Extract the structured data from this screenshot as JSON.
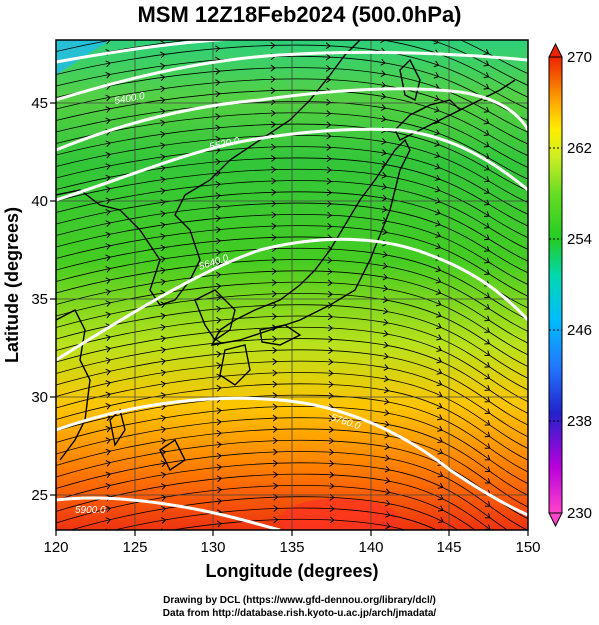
{
  "title": "MSM 12Z18Feb2024 (500.0hPa)",
  "axes": {
    "xlabel": "Longitude (degrees)",
    "ylabel": "Latitude  (degrees)",
    "xticks": [
      "120",
      "125",
      "130",
      "135",
      "140",
      "145",
      "150"
    ],
    "yticks": [
      "25",
      "30",
      "35",
      "40",
      "45"
    ]
  },
  "colorbar": {
    "tick_labels": [
      "230",
      "238",
      "246",
      "254",
      "262",
      "270"
    ],
    "range": [
      230,
      270
    ],
    "colors": [
      "#ff44cc",
      "#bb00dd",
      "#2222cc",
      "#2277ff",
      "#00bbff",
      "#00e0c0",
      "#22cc22",
      "#66dd22",
      "#aaee22",
      "#ffee00",
      "#ffaa00",
      "#ff5500",
      "#ee2200"
    ]
  },
  "contours": {
    "labels": [
      "5400.0",
      "5520.0",
      "5640.0",
      "5760.0",
      "5880.0",
      "5900.0"
    ],
    "color": "#ffffff"
  },
  "credits": {
    "line1": "Drawing by DCL (https://www.gfd-dennou.org/library/dcl/)",
    "line2": "Data from http://database.rish.kyoto-u.ac.jp/arch/jmadata/"
  },
  "map": {
    "lon_range": [
      120,
      150
    ],
    "lat_range": [
      23,
      48
    ],
    "field": "temperature (K)",
    "overlay": "streamlines"
  }
}
